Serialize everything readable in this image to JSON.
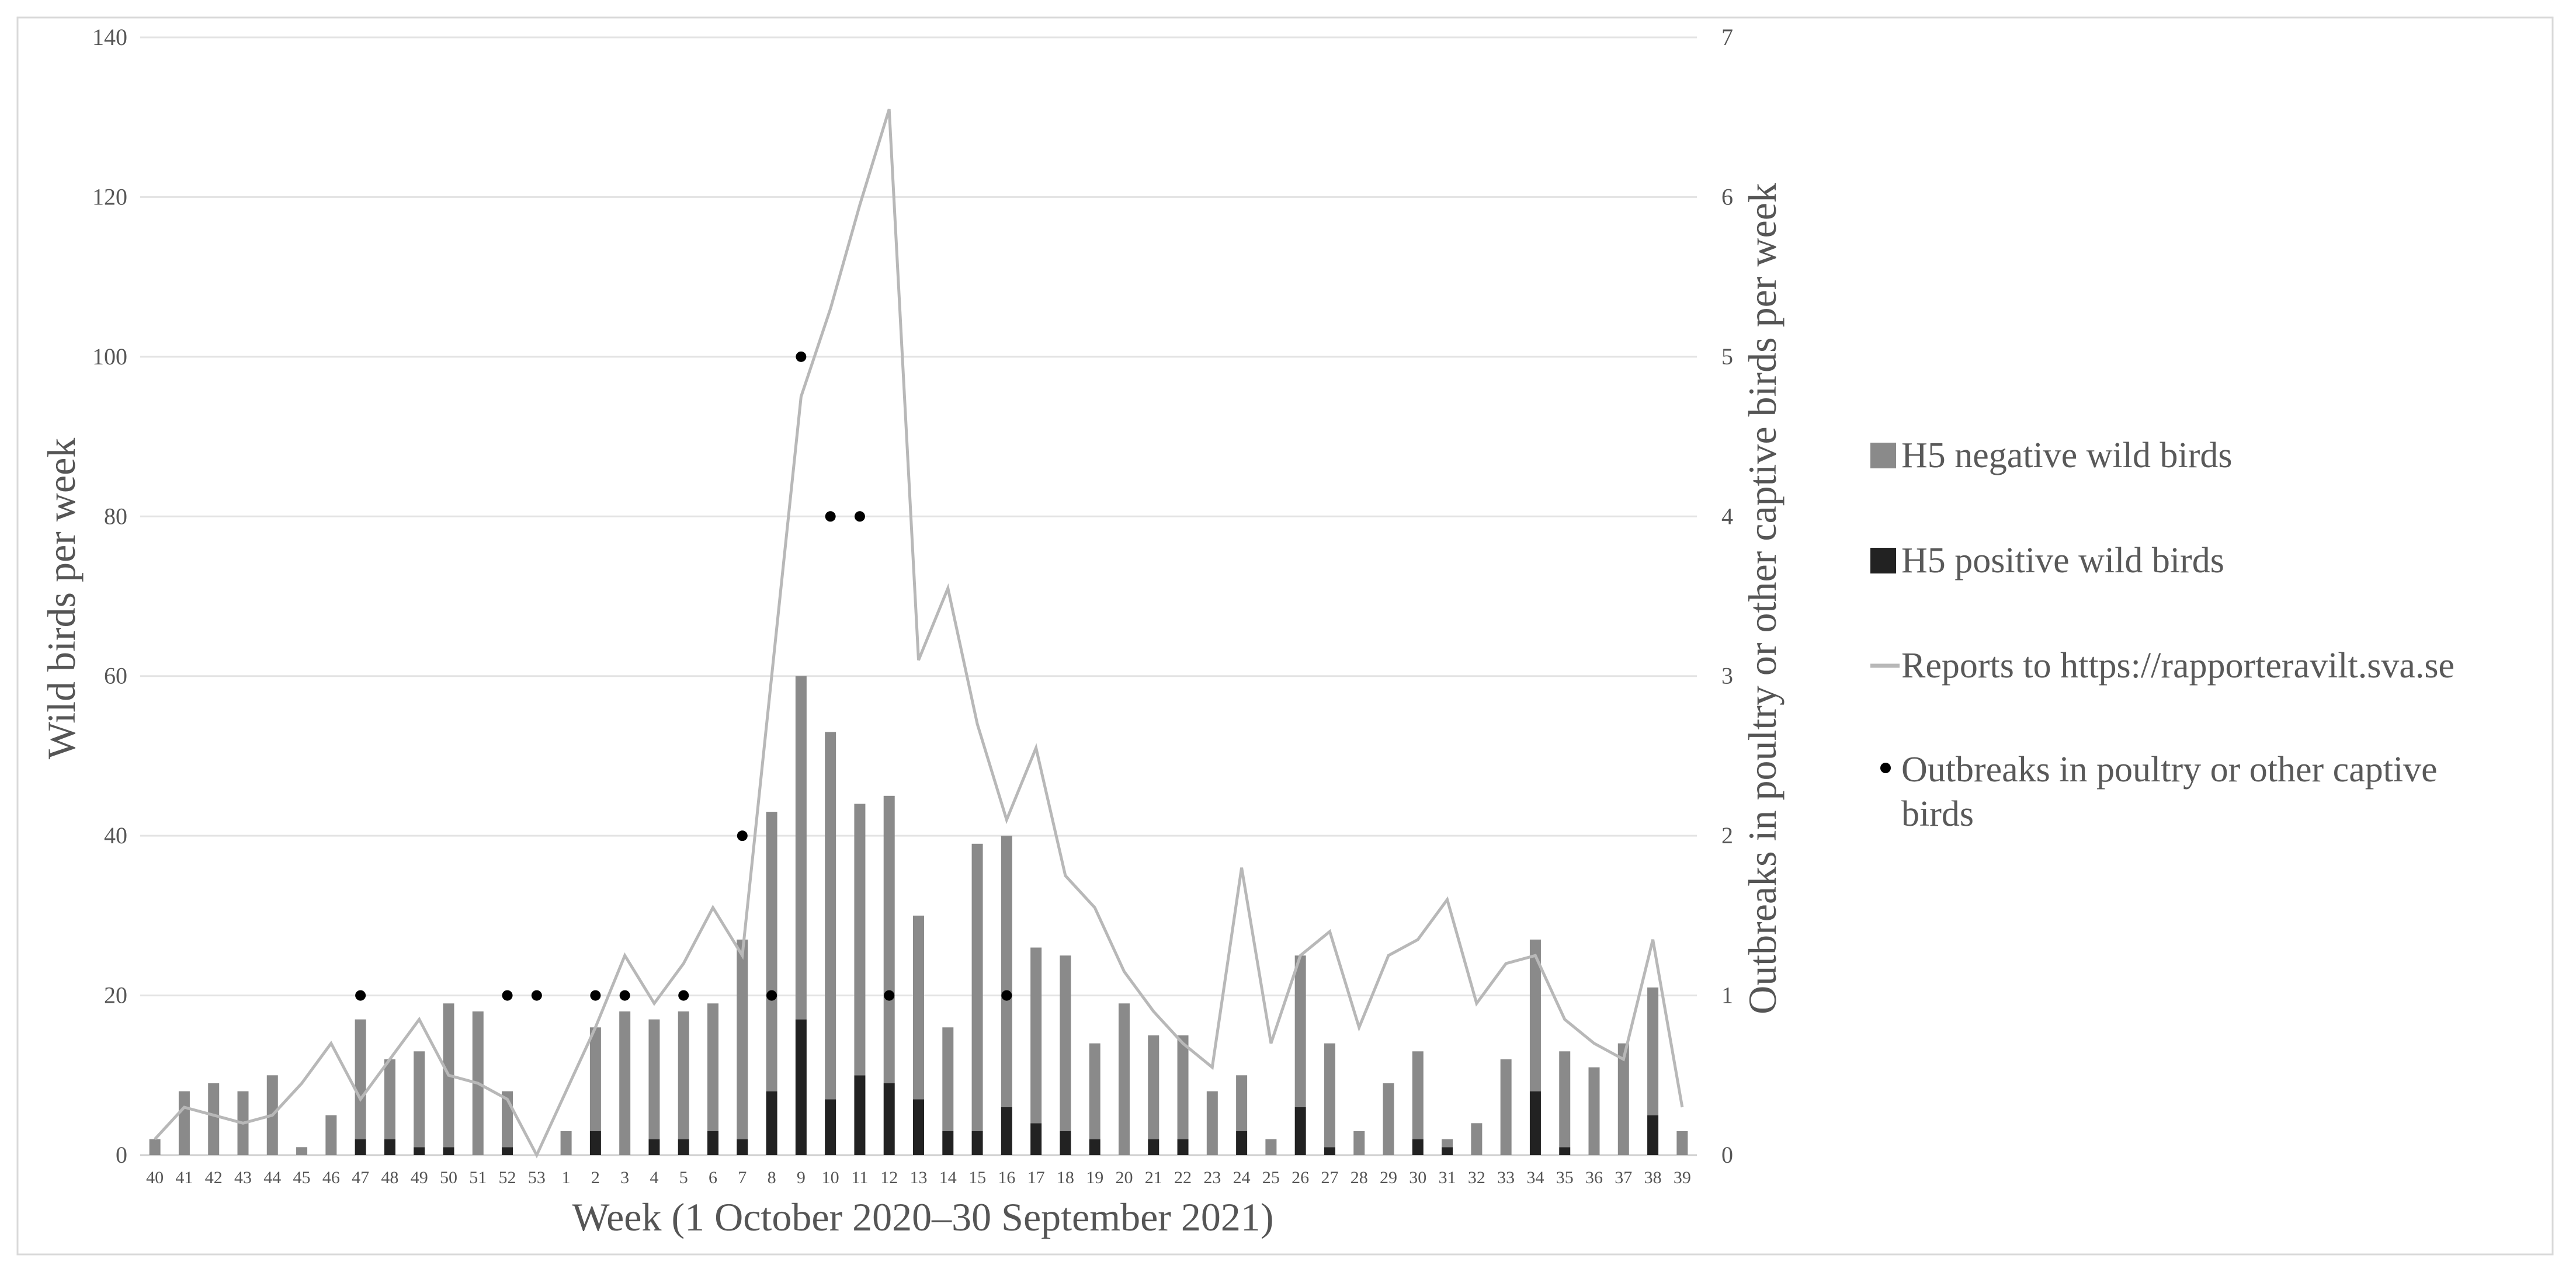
{
  "colors": {
    "negative": "#8a8a8a",
    "positive": "#222222",
    "reports": "#b8b8b8",
    "outbreaks": "#000000",
    "grid": "#e3e3e3",
    "frame": "#d9d9d9"
  },
  "chart_data": {
    "type": "bar",
    "subtype": "stacked bar with line and dot overlay on secondary axis",
    "xlabel": "Week (1 October 2020–30 September 2021)",
    "ylabel": "Wild birds per week",
    "y2label": "Outbreaks in poultry or other captive birds per week",
    "ylim": [
      0,
      140
    ],
    "y2lim": [
      0,
      7
    ],
    "yticks": [
      "0",
      "20",
      "40",
      "60",
      "80",
      "100",
      "120",
      "140"
    ],
    "y2ticks": [
      "0",
      "1",
      "2",
      "3",
      "4",
      "5",
      "6",
      "7"
    ],
    "grid": "horizontal",
    "legend_position": "right",
    "legend": [
      {
        "label": "H5 negative wild birds",
        "kind": "box",
        "color": "#8a8a8a"
      },
      {
        "label": "H5 positive wild birds",
        "kind": "box",
        "color": "#222222"
      },
      {
        "label": "Reports to https://rapporteravilt.sva.se",
        "kind": "line",
        "color": "#b8b8b8"
      },
      {
        "label": "Outbreaks in poultry or other captive birds",
        "kind": "dot",
        "color": "#000000"
      }
    ],
    "categories": [
      "40",
      "41",
      "42",
      "43",
      "44",
      "45",
      "46",
      "47",
      "48",
      "49",
      "50",
      "51",
      "52",
      "53",
      "1",
      "2",
      "3",
      "4",
      "5",
      "6",
      "7",
      "8",
      "9",
      "10",
      "11",
      "12",
      "13",
      "14",
      "15",
      "16",
      "17",
      "18",
      "19",
      "20",
      "21",
      "22",
      "23",
      "24",
      "25",
      "26",
      "27",
      "28",
      "29",
      "30",
      "31",
      "32",
      "33",
      "34",
      "35",
      "36",
      "37",
      "38",
      "39"
    ],
    "series": [
      {
        "name": "H5 negative wild birds",
        "type": "bar",
        "axis": "left",
        "values": [
          2,
          8,
          9,
          8,
          10,
          1,
          5,
          15,
          10,
          12,
          18,
          18,
          7,
          0,
          3,
          13,
          18,
          15,
          16,
          16,
          25,
          35,
          43,
          46,
          34,
          36,
          23,
          13,
          36,
          34,
          22,
          22,
          12,
          19,
          13,
          13,
          8,
          7,
          2,
          19,
          13,
          3,
          9,
          11,
          1,
          4,
          12,
          19,
          12,
          11,
          14,
          16,
          3
        ]
      },
      {
        "name": "H5 positive wild birds",
        "type": "bar",
        "axis": "left",
        "values": [
          0,
          0,
          0,
          0,
          0,
          0,
          0,
          2,
          2,
          1,
          1,
          0,
          1,
          0,
          0,
          3,
          0,
          2,
          2,
          3,
          2,
          8,
          17,
          7,
          10,
          9,
          7,
          3,
          3,
          6,
          4,
          3,
          2,
          0,
          2,
          2,
          0,
          3,
          0,
          6,
          1,
          0,
          0,
          2,
          1,
          0,
          0,
          8,
          1,
          0,
          0,
          5,
          0
        ]
      },
      {
        "name": "Reports to https://rapporteravilt.sva.se",
        "type": "line",
        "axis": "left",
        "values": [
          2,
          6,
          5,
          4,
          5,
          9,
          14,
          7,
          12,
          17,
          10,
          9,
          7,
          0,
          8,
          16,
          25,
          19,
          24,
          31,
          25,
          60,
          95,
          106,
          119,
          131,
          62,
          71,
          54,
          42,
          51,
          35,
          31,
          23,
          18,
          14,
          11,
          36,
          14,
          25,
          28,
          16,
          25,
          27,
          32,
          19,
          24,
          25,
          17,
          14,
          12,
          27,
          6
        ]
      },
      {
        "name": "Outbreaks in poultry or other captive birds",
        "type": "dot",
        "axis": "right",
        "values": [
          null,
          null,
          null,
          null,
          null,
          null,
          null,
          1,
          null,
          null,
          null,
          null,
          1,
          1,
          null,
          1,
          1,
          null,
          1,
          null,
          2,
          1,
          5,
          4,
          4,
          1,
          null,
          null,
          null,
          1,
          null,
          null,
          null,
          null,
          null,
          null,
          null,
          null,
          null,
          null,
          null,
          null,
          null,
          null,
          null,
          null,
          null,
          null,
          null,
          null,
          null,
          null,
          null
        ]
      }
    ]
  }
}
